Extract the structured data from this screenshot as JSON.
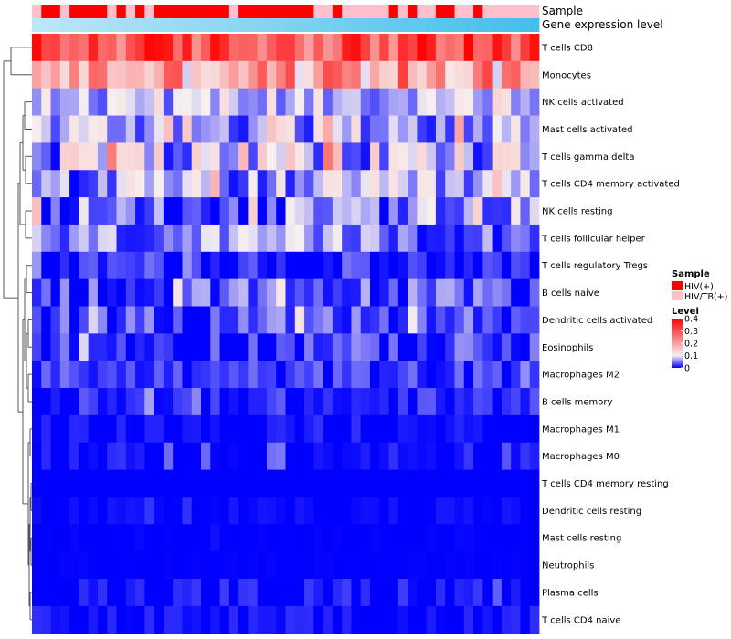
{
  "chart_data": {
    "type": "heatmap",
    "annotation_rows": [
      {
        "label": "Sample",
        "kind": "categorical"
      },
      {
        "label": "Gene expression level",
        "kind": "continuous",
        "color_from": "#bde6f8",
        "color_to": "#42bfea"
      }
    ],
    "sample_groups": [
      "HIV/TB(+)",
      "HIV(+)",
      "HIV(+)",
      "HIV/TB(+)",
      "HIV(+)",
      "HIV(+)",
      "HIV(+)",
      "HIV(+)",
      "HIV/TB(+)",
      "HIV(+)",
      "HIV/TB(+)",
      "HIV(+)",
      "HIV/TB(+)",
      "HIV(+)",
      "HIV(+)",
      "HIV(+)",
      "HIV(+)",
      "HIV(+)",
      "HIV(+)",
      "HIV(+)",
      "HIV(+)",
      "HIV/TB(+)",
      "HIV(+)",
      "HIV(+)",
      "HIV(+)",
      "HIV(+)",
      "HIV(+)",
      "HIV(+)",
      "HIV(+)",
      "HIV(+)",
      "HIV/TB(+)",
      "HIV/TB(+)",
      "HIV(+)",
      "HIV/TB(+)",
      "HIV/TB(+)",
      "HIV/TB(+)",
      "HIV/TB(+)",
      "HIV/TB(+)",
      "HIV(+)",
      "HIV/TB(+)",
      "HIV(+)",
      "HIV/TB(+)",
      "HIV/TB(+)",
      "HIV(+)",
      "HIV(+)",
      "HIV/TB(+)",
      "HIV/TB(+)",
      "HIV(+)",
      "HIV/TB(+)",
      "HIV/TB(+)",
      "HIV/TB(+)",
      "HIV/TB(+)",
      "HIV/TB(+)",
      "HIV/TB(+)"
    ],
    "rows": [
      "T cells CD8",
      "Monocytes",
      "NK cells activated",
      "Mast cells activated",
      "T cells gamma delta",
      "T cells CD4 memory activated",
      "NK cells resting",
      "T cells follicular helper",
      "T cells regulatory  Tregs",
      "B cells naive",
      "Dendritic cells activated",
      "Eosinophils",
      "Macrophages M2",
      "B cells memory",
      "Macrophages M1",
      "Macrophages M0",
      "T cells CD4 memory resting",
      "Dendritic cells resting",
      "Mast cells resting",
      "Neutrophils",
      "Plasma cells",
      "T cells CD4 naive"
    ],
    "row_profiles": [
      {
        "base": 0.3,
        "amp": 0.1
      },
      {
        "base": 0.2,
        "amp": 0.12
      },
      {
        "base": 0.08,
        "amp": 0.05
      },
      {
        "base": 0.07,
        "amp": 0.06
      },
      {
        "base": 0.08,
        "amp": 0.09
      },
      {
        "base": 0.06,
        "amp": 0.06
      },
      {
        "base": 0.04,
        "amp": 0.06
      },
      {
        "base": 0.05,
        "amp": 0.05
      },
      {
        "base": 0.01,
        "amp": 0.03
      },
      {
        "base": 0.03,
        "amp": 0.05
      },
      {
        "base": 0.03,
        "amp": 0.04
      },
      {
        "base": 0.02,
        "amp": 0.04
      },
      {
        "base": 0.02,
        "amp": 0.03
      },
      {
        "base": 0.01,
        "amp": 0.03
      },
      {
        "base": 0.0,
        "amp": 0.02
      },
      {
        "base": 0.0,
        "amp": 0.025
      },
      {
        "base": 0.0,
        "amp": 0.0
      },
      {
        "base": 0.0,
        "amp": 0.01
      },
      {
        "base": 0.0,
        "amp": 0.003
      },
      {
        "base": 0.0,
        "amp": 0.002
      },
      {
        "base": 0.0,
        "amp": 0.03
      },
      {
        "base": 0.0,
        "amp": 0.02
      }
    ],
    "color_scale": {
      "min": 0,
      "mid": 0.1,
      "max": 0.4,
      "low_color": "#0000ff",
      "mid_color": "#f7f0f0",
      "high_color": "#ff0000"
    },
    "legend_sample": {
      "title": "Sample",
      "entries": [
        {
          "label": "HIV(+)",
          "color": "#ff0000"
        },
        {
          "label": "HIV/TB(+)",
          "color": "#ffc0cb"
        }
      ]
    },
    "legend_level": {
      "title": "Level",
      "ticks": [
        {
          "label": "0.4",
          "value": 0.4
        },
        {
          "label": "0.3",
          "value": 0.3
        },
        {
          "label": "0.2",
          "value": 0.2
        },
        {
          "label": "0.1",
          "value": 0.1
        },
        {
          "label": "0",
          "value": 0
        }
      ]
    }
  }
}
